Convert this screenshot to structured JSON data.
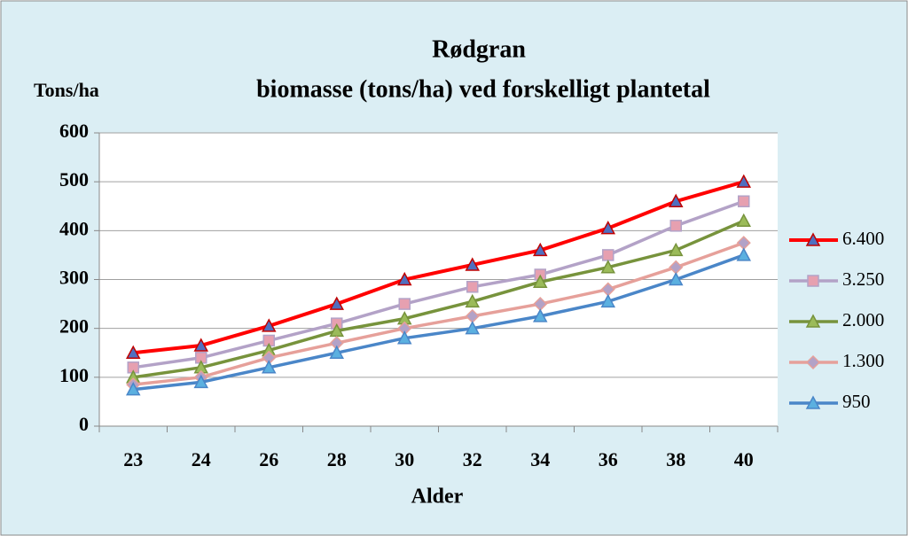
{
  "chart_data": {
    "type": "line",
    "title": [
      "Rødgran",
      "biomasse (tons/ha) ved forskelligt plantetal"
    ],
    "y_label": "Tons/ha",
    "x_label": "Alder",
    "categories": [
      23,
      24,
      26,
      28,
      30,
      32,
      34,
      36,
      38,
      40
    ],
    "series": [
      {
        "name": "6.400",
        "color": "#ff0000",
        "marker": "triangle",
        "marker_color": "#4f6fc0",
        "values": [
          150,
          165,
          205,
          250,
          300,
          330,
          360,
          405,
          460,
          500
        ]
      },
      {
        "name": "3.250",
        "color": "#b3a2c7",
        "marker": "square",
        "marker_color": "#e6a0b0",
        "values": [
          120,
          140,
          175,
          210,
          250,
          285,
          310,
          350,
          410,
          460
        ]
      },
      {
        "name": "2.000",
        "color": "#77933c",
        "marker": "triangle",
        "marker_color": "#9bbb59",
        "values": [
          100,
          120,
          155,
          195,
          220,
          255,
          295,
          325,
          360,
          420
        ]
      },
      {
        "name": "1.300",
        "color": "#e6a09a",
        "marker": "diamond",
        "marker_color": "#b3a2c7",
        "values": [
          85,
          100,
          140,
          170,
          200,
          225,
          250,
          280,
          325,
          375
        ]
      },
      {
        "name": "950",
        "color": "#4a86c8",
        "marker": "triangle",
        "marker_color": "#5bb0e0",
        "values": [
          75,
          90,
          120,
          150,
          180,
          200,
          225,
          255,
          300,
          350
        ]
      }
    ],
    "ylim": [
      0,
      600
    ],
    "yticks": [
      0,
      100,
      200,
      300,
      400,
      500,
      600
    ],
    "grid": true,
    "legend": "right"
  }
}
